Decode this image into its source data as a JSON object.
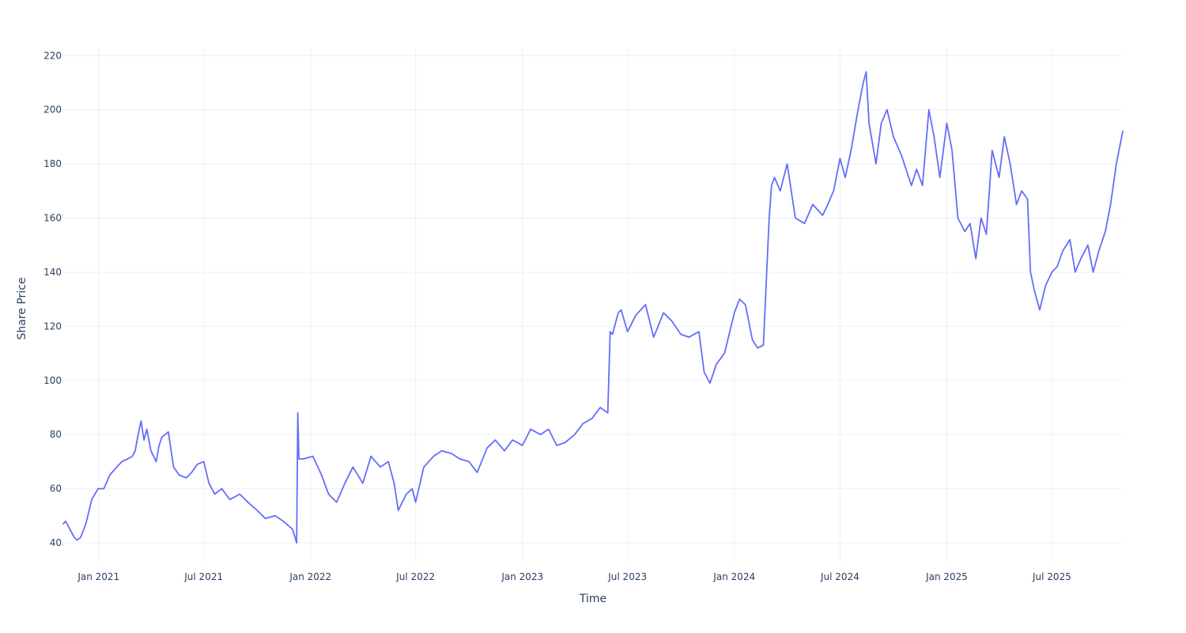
{
  "chart_data": {
    "type": "line",
    "title": "",
    "xlabel": "Time",
    "ylabel": "Share Price",
    "xlim": [
      "2020-11-01",
      "2025-10-31"
    ],
    "ylim": [
      33,
      223
    ],
    "grid": true,
    "legend": "none",
    "colors": {
      "line": "#636efa",
      "grid": "#ebf0f8",
      "text": "#2a3f5f",
      "background": "#ffffff"
    },
    "x_ticks": [
      {
        "date": "2021-01-01",
        "label": "Jan 2021"
      },
      {
        "date": "2021-07-01",
        "label": "Jul 2021"
      },
      {
        "date": "2022-01-01",
        "label": "Jan 2022"
      },
      {
        "date": "2022-07-01",
        "label": "Jul 2022"
      },
      {
        "date": "2023-01-01",
        "label": "Jan 2023"
      },
      {
        "date": "2023-07-01",
        "label": "Jul 2023"
      },
      {
        "date": "2024-01-01",
        "label": "Jan 2024"
      },
      {
        "date": "2024-07-01",
        "label": "Jul 2024"
      },
      {
        "date": "2025-01-01",
        "label": "Jan 2025"
      },
      {
        "date": "2025-07-01",
        "label": "Jul 2025"
      }
    ],
    "y_ticks": [
      40,
      60,
      80,
      100,
      120,
      140,
      160,
      180,
      200,
      220
    ],
    "series": [
      {
        "x": [
          "2020-11-01",
          "2020-11-05",
          "2020-11-10",
          "2020-11-15",
          "2020-11-20",
          "2020-11-25",
          "2020-12-01",
          "2020-12-10",
          "2020-12-20",
          "2020-12-31",
          "2021-01-10",
          "2021-01-20",
          "2021-02-01",
          "2021-02-10",
          "2021-02-20",
          "2021-02-28",
          "2021-03-05",
          "2021-03-10",
          "2021-03-15",
          "2021-03-20",
          "2021-03-25",
          "2021-04-01",
          "2021-04-10",
          "2021-04-15",
          "2021-04-20",
          "2021-05-01",
          "2021-05-10",
          "2021-05-20",
          "2021-06-01",
          "2021-06-10",
          "2021-06-20",
          "2021-07-01",
          "2021-07-10",
          "2021-07-20",
          "2021-08-01",
          "2021-08-15",
          "2021-09-01",
          "2021-09-15",
          "2021-10-01",
          "2021-10-15",
          "2021-11-01",
          "2021-11-15",
          "2021-12-01",
          "2021-12-08",
          "2021-12-10",
          "2021-12-12",
          "2021-12-20",
          "2022-01-05",
          "2022-01-20",
          "2022-02-01",
          "2022-02-15",
          "2022-03-01",
          "2022-03-15",
          "2022-04-01",
          "2022-04-15",
          "2022-05-01",
          "2022-05-15",
          "2022-05-25",
          "2022-06-01",
          "2022-06-15",
          "2022-06-25",
          "2022-07-01",
          "2022-07-15",
          "2022-08-01",
          "2022-08-15",
          "2022-09-01",
          "2022-09-15",
          "2022-10-01",
          "2022-10-15",
          "2022-11-01",
          "2022-11-15",
          "2022-12-01",
          "2022-12-15",
          "2023-01-01",
          "2023-01-15",
          "2023-02-01",
          "2023-02-15",
          "2023-03-01",
          "2023-03-15",
          "2023-04-01",
          "2023-04-15",
          "2023-05-01",
          "2023-05-15",
          "2023-05-28",
          "2023-06-01",
          "2023-06-05",
          "2023-06-15",
          "2023-06-20",
          "2023-07-01",
          "2023-07-15",
          "2023-08-01",
          "2023-08-15",
          "2023-09-01",
          "2023-09-15",
          "2023-10-01",
          "2023-10-15",
          "2023-11-01",
          "2023-11-10",
          "2023-11-20",
          "2023-12-01",
          "2023-12-15",
          "2024-01-01",
          "2024-01-10",
          "2024-01-20",
          "2024-02-01",
          "2024-02-10",
          "2024-02-20",
          "2024-03-01",
          "2024-03-05",
          "2024-03-10",
          "2024-03-20",
          "2024-04-01",
          "2024-04-15",
          "2024-05-01",
          "2024-05-15",
          "2024-06-01",
          "2024-06-10",
          "2024-06-20",
          "2024-07-01",
          "2024-07-10",
          "2024-07-20",
          "2024-08-01",
          "2024-08-10",
          "2024-08-15",
          "2024-08-20",
          "2024-09-01",
          "2024-09-10",
          "2024-09-20",
          "2024-10-01",
          "2024-10-15",
          "2024-11-01",
          "2024-11-10",
          "2024-11-20",
          "2024-12-01",
          "2024-12-10",
          "2024-12-20",
          "2025-01-01",
          "2025-01-10",
          "2025-01-20",
          "2025-02-01",
          "2025-02-10",
          "2025-02-20",
          "2025-03-01",
          "2025-03-10",
          "2025-03-20",
          "2025-04-01",
          "2025-04-10",
          "2025-04-20",
          "2025-05-01",
          "2025-05-10",
          "2025-05-20",
          "2025-05-25",
          "2025-06-01",
          "2025-06-10",
          "2025-06-20",
          "2025-07-01",
          "2025-07-10",
          "2025-07-20",
          "2025-08-01",
          "2025-08-10",
          "2025-08-20",
          "2025-09-01",
          "2025-09-10",
          "2025-09-20",
          "2025-10-01",
          "2025-10-10",
          "2025-10-20",
          "2025-10-31"
        ],
        "values": [
          47,
          48,
          46,
          44,
          42,
          41,
          42,
          47,
          56,
          60,
          60,
          65,
          68,
          70,
          71,
          72,
          74,
          80,
          85,
          78,
          82,
          74,
          70,
          76,
          79,
          81,
          68,
          65,
          64,
          66,
          69,
          70,
          62,
          58,
          60,
          56,
          58,
          55,
          52,
          49,
          50,
          48,
          45,
          40,
          88,
          71,
          71,
          72,
          65,
          58,
          55,
          62,
          68,
          62,
          72,
          68,
          70,
          62,
          52,
          58,
          60,
          55,
          68,
          72,
          74,
          73,
          71,
          70,
          66,
          75,
          78,
          74,
          78,
          76,
          82,
          80,
          82,
          76,
          77,
          80,
          84,
          86,
          90,
          88,
          118,
          117,
          125,
          126,
          118,
          124,
          128,
          116,
          125,
          122,
          117,
          116,
          118,
          103,
          99,
          106,
          110,
          125,
          130,
          128,
          115,
          112,
          113,
          160,
          172,
          175,
          170,
          180,
          160,
          158,
          165,
          161,
          165,
          170,
          182,
          175,
          185,
          200,
          210,
          214,
          195,
          180,
          195,
          200,
          190,
          183,
          172,
          178,
          172,
          200,
          190,
          175,
          195,
          185,
          160,
          155,
          158,
          145,
          160,
          154,
          185,
          175,
          190,
          180,
          165,
          170,
          167,
          140,
          133,
          126,
          135,
          140,
          142,
          148,
          152,
          140,
          145,
          150,
          140,
          148,
          155,
          165,
          180,
          192
        ]
      }
    ]
  }
}
